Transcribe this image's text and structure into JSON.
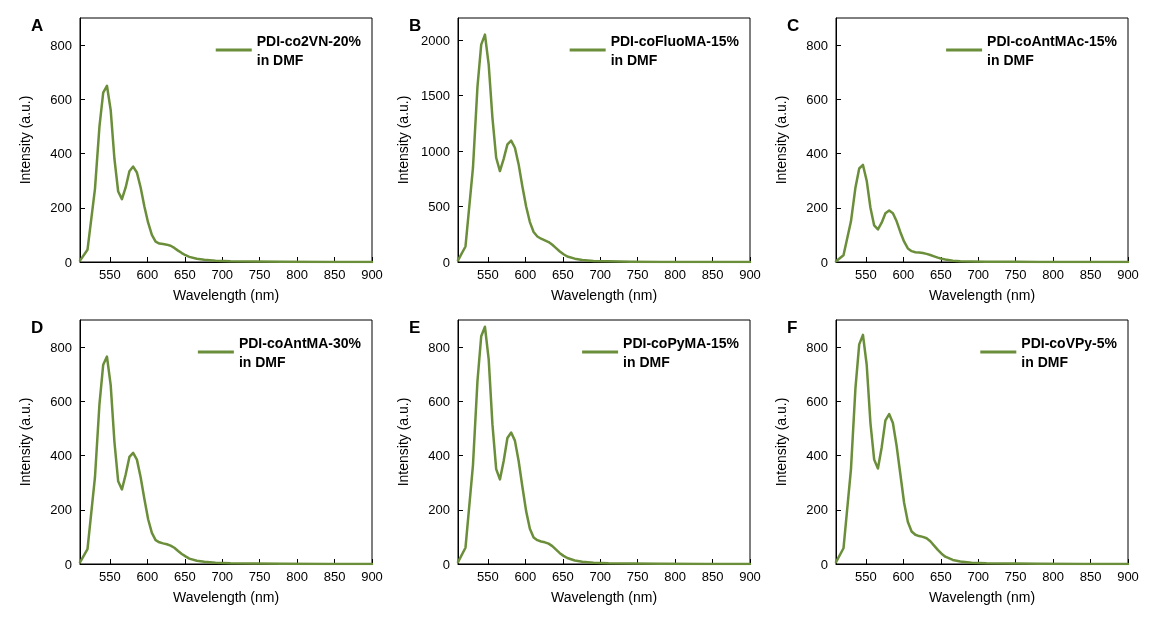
{
  "chart_data": [
    {
      "type": "line",
      "title": "A",
      "xlabel": "Wavelength (nm)",
      "ylabel": "Intensity (a.u.)",
      "xlim": [
        510,
        900
      ],
      "xticks": [
        550,
        600,
        650,
        700,
        750,
        800,
        850,
        900
      ],
      "ylim": [
        0,
        900
      ],
      "yticks": [
        0,
        200,
        400,
        600,
        800
      ],
      "legend": "top right",
      "marker": "none",
      "line_style": "solid",
      "x": [
        510,
        520,
        530,
        536,
        541,
        546,
        551,
        556,
        561,
        566,
        571,
        576,
        581,
        586,
        591,
        596,
        601,
        606,
        611,
        616,
        621,
        626,
        631,
        636,
        641,
        646,
        651,
        656,
        666,
        676,
        691,
        711,
        741,
        781,
        841,
        900
      ],
      "series": [
        {
          "name": "PDI-co2VN-20%\nin DMF",
          "color": "#6b8e3a",
          "values": [
            5,
            45,
            270,
            500,
            625,
            650,
            560,
            380,
            260,
            232,
            275,
            335,
            352,
            330,
            275,
            205,
            145,
            100,
            75,
            68,
            66,
            64,
            60,
            52,
            42,
            33,
            25,
            19,
            12,
            8,
            5,
            3,
            2,
            1,
            0,
            0
          ]
        }
      ]
    },
    {
      "type": "line",
      "title": "B",
      "xlabel": "Wavelength (nm)",
      "ylabel": "Intensity (a.u.)",
      "xlim": [
        510,
        900
      ],
      "xticks": [
        550,
        600,
        650,
        700,
        750,
        800,
        850,
        900
      ],
      "ylim": [
        0,
        2200
      ],
      "yticks": [
        0,
        500,
        1000,
        1500,
        2000
      ],
      "legend": "top right",
      "marker": "none",
      "line_style": "solid",
      "x": [
        510,
        520,
        530,
        536,
        541,
        546,
        551,
        556,
        561,
        566,
        571,
        576,
        581,
        586,
        591,
        596,
        601,
        606,
        611,
        616,
        621,
        626,
        631,
        636,
        641,
        646,
        651,
        656,
        666,
        676,
        691,
        711,
        741,
        781,
        841,
        900
      ],
      "series": [
        {
          "name": "PDI-coFluoMA-15%\nin DMF",
          "color": "#6b8e3a",
          "values": [
            15,
            140,
            850,
            1580,
            1960,
            2050,
            1780,
            1300,
            940,
            820,
            930,
            1060,
            1095,
            1030,
            880,
            680,
            500,
            360,
            270,
            230,
            210,
            195,
            180,
            155,
            125,
            95,
            70,
            50,
            30,
            18,
            10,
            6,
            3,
            1,
            0,
            0
          ]
        }
      ]
    },
    {
      "type": "line",
      "title": "C",
      "xlabel": "Wavelength (nm)",
      "ylabel": "Intensity (a.u.)",
      "xlim": [
        510,
        900
      ],
      "xticks": [
        550,
        600,
        650,
        700,
        750,
        800,
        850,
        900
      ],
      "ylim": [
        0,
        900
      ],
      "yticks": [
        0,
        200,
        400,
        600,
        800
      ],
      "legend": "top right",
      "marker": "none",
      "line_style": "solid",
      "x": [
        510,
        520,
        530,
        536,
        541,
        546,
        551,
        556,
        561,
        566,
        571,
        576,
        581,
        586,
        591,
        596,
        601,
        606,
        611,
        616,
        621,
        626,
        631,
        636,
        641,
        646,
        651,
        656,
        666,
        676,
        691,
        711,
        741,
        781,
        841,
        900
      ],
      "series": [
        {
          "name": "PDI-coAntMAc-15%\nin DMF",
          "color": "#6b8e3a",
          "values": [
            3,
            25,
            150,
            275,
            345,
            358,
            300,
            200,
            135,
            120,
            145,
            180,
            190,
            180,
            150,
            110,
            75,
            50,
            40,
            36,
            35,
            33,
            30,
            26,
            21,
            16,
            12,
            9,
            5,
            3,
            2,
            1,
            1,
            0,
            0,
            0
          ]
        }
      ]
    },
    {
      "type": "line",
      "title": "D",
      "xlabel": "Wavelength (nm)",
      "ylabel": "Intensity (a.u.)",
      "xlim": [
        510,
        900
      ],
      "xticks": [
        550,
        600,
        650,
        700,
        750,
        800,
        850,
        900
      ],
      "ylim": [
        0,
        900
      ],
      "yticks": [
        0,
        200,
        400,
        600,
        800
      ],
      "legend": "top right",
      "marker": "none",
      "line_style": "solid",
      "x": [
        510,
        520,
        530,
        536,
        541,
        546,
        551,
        556,
        561,
        566,
        571,
        576,
        581,
        586,
        591,
        596,
        601,
        606,
        611,
        616,
        621,
        626,
        631,
        636,
        641,
        646,
        651,
        656,
        666,
        676,
        691,
        711,
        741,
        781,
        841,
        900
      ],
      "series": [
        {
          "name": "PDI-coAntMA-30%\nin DMF",
          "color": "#6b8e3a",
          "values": [
            6,
            55,
            320,
            590,
            735,
            765,
            660,
            450,
            305,
            275,
            330,
            395,
            410,
            385,
            320,
            240,
            165,
            115,
            88,
            80,
            76,
            73,
            68,
            60,
            48,
            37,
            28,
            20,
            12,
            8,
            5,
            3,
            2,
            1,
            0,
            0
          ]
        }
      ]
    },
    {
      "type": "line",
      "title": "E",
      "xlabel": "Wavelength (nm)",
      "ylabel": "Intensity (a.u.)",
      "xlim": [
        510,
        900
      ],
      "xticks": [
        550,
        600,
        650,
        700,
        750,
        800,
        850,
        900
      ],
      "ylim": [
        0,
        900
      ],
      "yticks": [
        0,
        200,
        400,
        600,
        800
      ],
      "legend": "top right",
      "marker": "none",
      "line_style": "solid",
      "x": [
        510,
        520,
        530,
        536,
        541,
        546,
        551,
        556,
        561,
        566,
        571,
        576,
        581,
        586,
        591,
        596,
        601,
        606,
        611,
        616,
        621,
        626,
        631,
        636,
        641,
        646,
        651,
        656,
        666,
        676,
        691,
        711,
        741,
        781,
        841,
        900
      ],
      "series": [
        {
          "name": "PDI-coPyMA-15%\nin DMF",
          "color": "#6b8e3a",
          "values": [
            7,
            60,
            365,
            675,
            840,
            875,
            755,
            515,
            350,
            312,
            380,
            465,
            485,
            455,
            380,
            285,
            195,
            130,
            98,
            88,
            83,
            80,
            75,
            66,
            53,
            40,
            30,
            22,
            13,
            8,
            5,
            3,
            2,
            1,
            0,
            0
          ]
        }
      ]
    },
    {
      "type": "line",
      "title": "F",
      "xlabel": "Wavelength (nm)",
      "ylabel": "Intensity (a.u.)",
      "xlim": [
        510,
        900
      ],
      "xticks": [
        550,
        600,
        650,
        700,
        750,
        800,
        850,
        900
      ],
      "ylim": [
        0,
        900
      ],
      "yticks": [
        0,
        200,
        400,
        600,
        800
      ],
      "legend": "top right",
      "marker": "none",
      "line_style": "solid",
      "x": [
        510,
        520,
        530,
        536,
        541,
        546,
        551,
        556,
        561,
        566,
        571,
        576,
        581,
        586,
        591,
        596,
        601,
        606,
        611,
        616,
        621,
        626,
        631,
        636,
        641,
        646,
        651,
        656,
        666,
        676,
        691,
        711,
        741,
        781,
        841,
        900
      ],
      "series": [
        {
          "name": "PDI-coVPy-5%\nin DMF",
          "color": "#6b8e3a",
          "values": [
            7,
            58,
            350,
            650,
            810,
            845,
            735,
            520,
            385,
            352,
            430,
            530,
            553,
            520,
            435,
            330,
            225,
            155,
            120,
            108,
            103,
            100,
            95,
            84,
            68,
            52,
            38,
            27,
            15,
            9,
            5,
            3,
            2,
            1,
            0,
            0
          ]
        }
      ]
    }
  ]
}
